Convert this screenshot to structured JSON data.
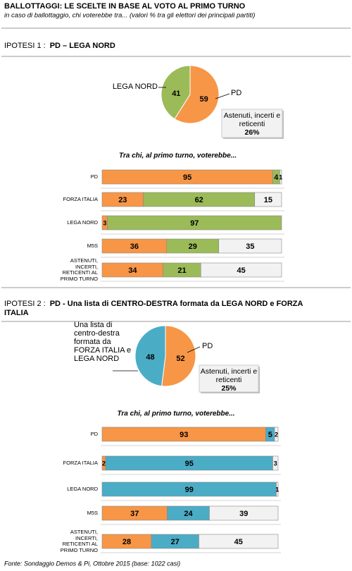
{
  "title": "BALLOTTAGGI:  LE SCELTE IN BASE AL VOTO AL PRIMO TURNO",
  "subtitle": "in caso di ballottaggio, chi voterebbe tra... (valori % tra gli elettori dei principali partiti)",
  "chart_data": [
    {
      "type": "pie",
      "label": "IPOTESI 1 :",
      "title": "PD – LEGA NORD",
      "categories": [
        "PD",
        "LEGA NORD"
      ],
      "values": [
        59,
        41
      ],
      "colors": [
        "#f79646",
        "#9bbb59"
      ],
      "annotation": "Astenuti, incerti e reticenti",
      "annotation_value": 26,
      "annotation_value_label": "26%"
    },
    {
      "type": "hbar",
      "title": "Tra chi, al primo turno, voterebbe...",
      "categories": [
        "PD",
        "FORZA ITALIA",
        "LEGA NORD",
        "M5S",
        "ASTENUTI, INCERTI, RETICENTI AL PRIMO TURNO"
      ],
      "series": [
        {
          "color": "#f79646",
          "values": [
            95,
            23,
            3,
            36,
            34
          ]
        },
        {
          "color": "#9bbb59",
          "values": [
            4,
            62,
            97,
            29,
            21
          ]
        },
        {
          "color": "#f2f2f2",
          "values": [
            1,
            15,
            null,
            35,
            45
          ]
        }
      ]
    },
    {
      "type": "pie",
      "label": "IPOTESI 2 :",
      "title": "PD - Una lista di CENTRO-DESTRA  formata da LEGA NORD e FORZA ITALIA",
      "categories": [
        "PD",
        "Una lista di centro-destra formata da FORZA ITALIA e LEGA NORD"
      ],
      "values": [
        52,
        48
      ],
      "colors": [
        "#f79646",
        "#4bacc6"
      ],
      "annotation": "Astenuti, incerti e reticenti",
      "annotation_value": 25,
      "annotation_value_label": "25%"
    },
    {
      "type": "hbar",
      "title": "Tra chi, al primo turno, voterebbe...",
      "categories": [
        "PD",
        "FORZA ITALIA",
        "LEGA NORD",
        "M5S",
        "ASTENUTI, INCERTI, RETICENTI AL PRIMO TURNO"
      ],
      "series": [
        {
          "color": "#f79646",
          "values": [
            93,
            2,
            null,
            37,
            28
          ]
        },
        {
          "color": "#4bacc6",
          "values": [
            5,
            95,
            99,
            24,
            27
          ]
        },
        {
          "color": "#f2f2f2",
          "values": [
            2,
            3,
            1,
            39,
            45
          ]
        }
      ]
    }
  ],
  "source": "Fonte: Sondaggio Demos & Pi, Ottobre 2015 (base: 1022 casi)"
}
